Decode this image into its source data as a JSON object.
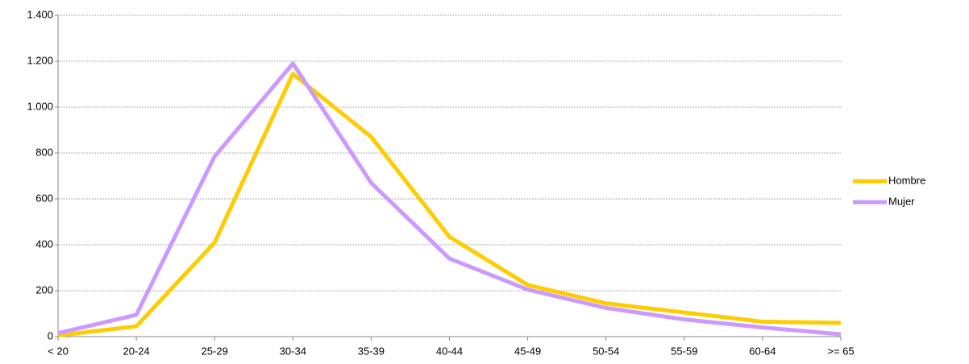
{
  "chart_data": {
    "type": "line",
    "categories": [
      "< 20",
      "20-24",
      "25-29",
      "30-34",
      "35-39",
      "40-44",
      "45-49",
      "50-54",
      "55-59",
      "60-64",
      ">= 65"
    ],
    "series": [
      {
        "name": "Hombre",
        "color": "#ffcc00",
        "values": [
          5,
          45,
          410,
          1145,
          870,
          435,
          225,
          145,
          105,
          65,
          60
        ]
      },
      {
        "name": "Mujer",
        "color": "#cc99ff",
        "values": [
          15,
          95,
          785,
          1190,
          670,
          340,
          205,
          125,
          75,
          40,
          10
        ]
      }
    ],
    "ylim": [
      0,
      1400
    ],
    "yticks": [
      0,
      200,
      400,
      600,
      800,
      {
        "value": 1000,
        "label": "1.000"
      },
      {
        "value": 1200,
        "label": "1.200"
      },
      {
        "value": 1400,
        "label": "1.400"
      }
    ],
    "grid": true,
    "legend": "right"
  }
}
